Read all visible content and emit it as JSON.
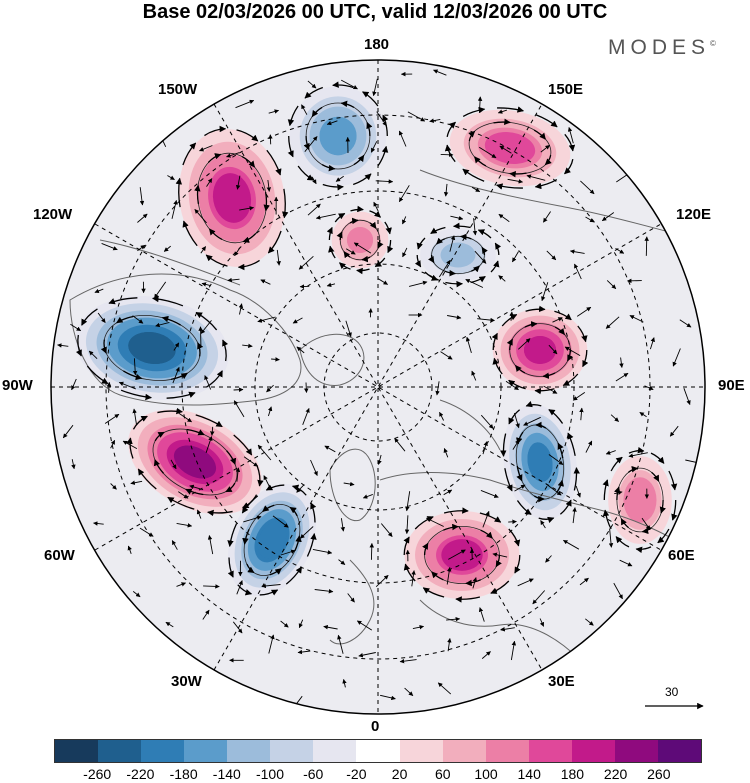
{
  "title": "Base 02/03/2026 00 UTC, valid 12/03/2026 00 UTC",
  "brand": "MODES",
  "brand_mark": "©",
  "longitude_labels": {
    "top": "180",
    "bottom": "0",
    "left": "90W",
    "right": "90E",
    "upper_left_outer": "150W",
    "upper_left_mid": "120W",
    "upper_right_outer": "150E",
    "upper_right_mid": "120E",
    "lower_left_mid": "60W",
    "lower_left_outer": "30W",
    "lower_right_mid": "60E",
    "lower_right_outer": "30E"
  },
  "reference_vector": "30",
  "colorbar": {
    "colors": [
      "#173a5c",
      "#1f5f8e",
      "#2f7db5",
      "#5b9ccb",
      "#9cbcdb",
      "#c5d2e6",
      "#e6e6f0",
      "#ffffff",
      "#f7d5da",
      "#f2aebd",
      "#ec7fa6",
      "#e0489a",
      "#c21a8a",
      "#8f0a7e",
      "#5e0a78"
    ],
    "labels": [
      "-260",
      "-220",
      "-180",
      "-140",
      "-100",
      "-60",
      "-20",
      "20",
      "60",
      "100",
      "140",
      "180",
      "220",
      "260"
    ]
  },
  "anomalies": [
    {
      "name": "ridge-north-pacific-a",
      "value": 180
    },
    {
      "name": "trough-north-pacific",
      "value": -160
    },
    {
      "name": "ridge-north-pacific-b",
      "value": 140
    },
    {
      "name": "trough-north-america",
      "value": -240
    },
    {
      "name": "ridge-north-atlantic-west",
      "value": 230
    },
    {
      "name": "trough-north-atlantic",
      "value": -220
    },
    {
      "name": "ridge-europe",
      "value": 180
    },
    {
      "name": "trough-russia",
      "value": -200
    },
    {
      "name": "ridge-siberia",
      "value": 200
    },
    {
      "name": "trough-east-siberia",
      "value": -120
    },
    {
      "name": "ridge-arctic",
      "value": 120
    },
    {
      "name": "ridge-central-asia",
      "value": 100
    }
  ]
}
